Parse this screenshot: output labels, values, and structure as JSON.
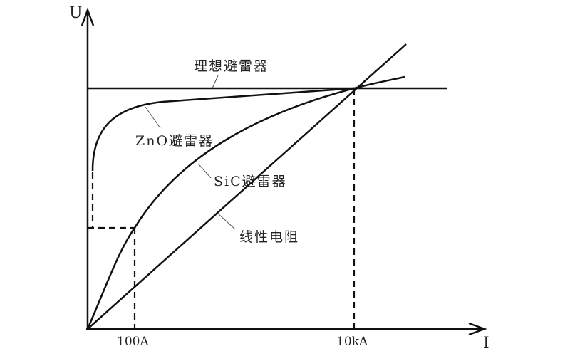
{
  "axes": {
    "y_label": "U",
    "x_label": "I"
  },
  "ticks": {
    "x1": "100A",
    "x2": "10kA"
  },
  "curves": {
    "ideal": "理想避雷器",
    "zno": "ZnO避雷器",
    "sic": "SiC避雷器",
    "linear": "线性电阻"
  },
  "colors": {
    "line": "#111111",
    "background": "#ffffff"
  }
}
